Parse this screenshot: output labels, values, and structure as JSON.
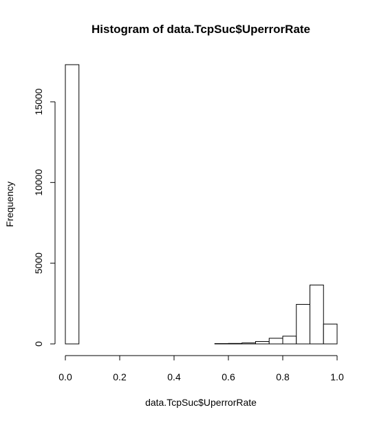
{
  "chart_data": {
    "type": "bar",
    "title": "Histogram of data.TcpSuc$UperrorRate",
    "xlabel": "data.TcpSuc$UperrorRate",
    "ylabel": "Frequency",
    "xlim": [
      0.0,
      1.0
    ],
    "ylim": [
      0,
      17300
    ],
    "x_ticks": [
      0.0,
      0.2,
      0.4,
      0.6,
      0.8,
      1.0
    ],
    "x_tick_labels": [
      "0.0",
      "0.2",
      "0.4",
      "0.6",
      "0.8",
      "1.0"
    ],
    "y_ticks": [
      0,
      5000,
      10000,
      15000
    ],
    "y_tick_labels": [
      "0",
      "5000",
      "10000",
      "15000"
    ],
    "grid": false,
    "bins": [
      {
        "start": 0.0,
        "end": 0.05,
        "count": 17300
      },
      {
        "start": 0.05,
        "end": 0.1,
        "count": 0
      },
      {
        "start": 0.1,
        "end": 0.15,
        "count": 0
      },
      {
        "start": 0.15,
        "end": 0.2,
        "count": 0
      },
      {
        "start": 0.2,
        "end": 0.25,
        "count": 0
      },
      {
        "start": 0.25,
        "end": 0.3,
        "count": 0
      },
      {
        "start": 0.3,
        "end": 0.35,
        "count": 0
      },
      {
        "start": 0.35,
        "end": 0.4,
        "count": 0
      },
      {
        "start": 0.4,
        "end": 0.45,
        "count": 0
      },
      {
        "start": 0.45,
        "end": 0.5,
        "count": 0
      },
      {
        "start": 0.5,
        "end": 0.55,
        "count": 0
      },
      {
        "start": 0.55,
        "end": 0.6,
        "count": 20
      },
      {
        "start": 0.6,
        "end": 0.65,
        "count": 30
      },
      {
        "start": 0.65,
        "end": 0.7,
        "count": 60
      },
      {
        "start": 0.7,
        "end": 0.75,
        "count": 150
      },
      {
        "start": 0.75,
        "end": 0.8,
        "count": 350
      },
      {
        "start": 0.8,
        "end": 0.85,
        "count": 480
      },
      {
        "start": 0.85,
        "end": 0.9,
        "count": 2450
      },
      {
        "start": 0.9,
        "end": 0.95,
        "count": 3650
      },
      {
        "start": 0.95,
        "end": 1.0,
        "count": 1230
      }
    ],
    "bar_fill": "#ffffff",
    "bar_stroke": "#000000"
  }
}
